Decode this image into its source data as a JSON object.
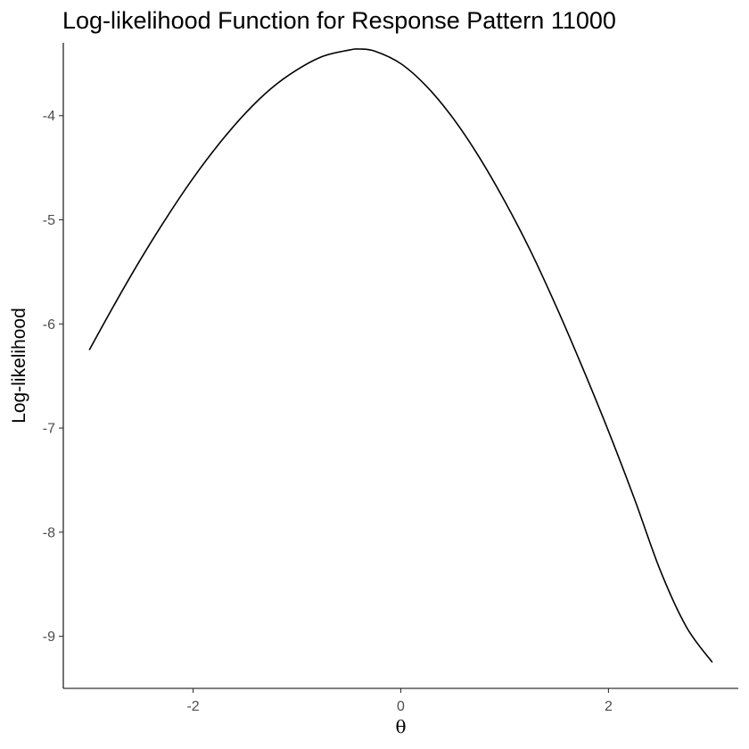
{
  "chart_data": {
    "type": "line",
    "title": "Log-likelihood Function for Response Pattern 11000",
    "xlabel": "θ",
    "ylabel": "Log-likelihood",
    "xlim": [
      -3.25,
      3.25
    ],
    "ylim": [
      -9.5,
      -3.3
    ],
    "x_ticks": [
      -2,
      0,
      2
    ],
    "x_tick_labels": [
      "-2",
      "0",
      "2"
    ],
    "y_ticks": [
      -9,
      -8,
      -7,
      -6,
      -5,
      -4
    ],
    "y_tick_labels": [
      "-9",
      "-8",
      "-7",
      "-6",
      "-5",
      "-4"
    ],
    "grid": false,
    "legend": "none",
    "line_color": "#000000",
    "series": [
      {
        "x": [
          -3.0,
          -2.75,
          -2.5,
          -2.25,
          -2.0,
          -1.75,
          -1.5,
          -1.25,
          -1.0,
          -0.75,
          -0.5,
          -0.4,
          -0.25,
          0.0,
          0.25,
          0.5,
          0.75,
          1.0,
          1.25,
          1.5,
          1.75,
          2.0,
          2.25,
          2.5,
          2.75,
          3.0
        ],
        "y": [
          -6.25,
          -5.8,
          -5.37,
          -4.97,
          -4.6,
          -4.27,
          -3.98,
          -3.74,
          -3.56,
          -3.43,
          -3.37,
          -3.36,
          -3.38,
          -3.5,
          -3.72,
          -4.02,
          -4.39,
          -4.82,
          -5.3,
          -5.84,
          -6.42,
          -7.03,
          -7.68,
          -8.37,
          -8.91,
          -9.25
        ]
      }
    ]
  }
}
